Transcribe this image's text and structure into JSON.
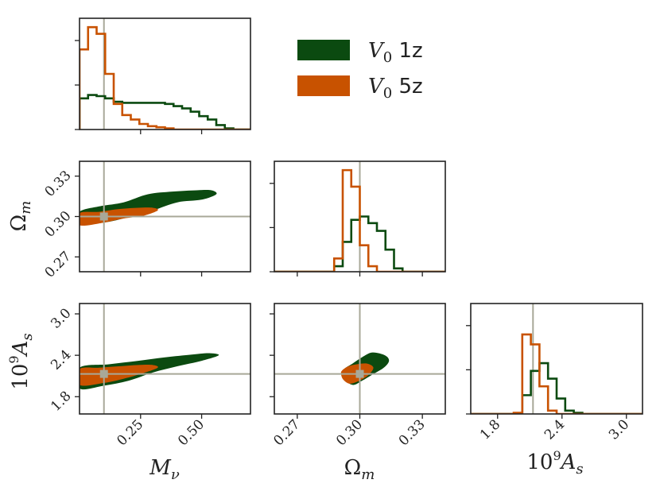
{
  "chart_data": {
    "type": "corner",
    "parameters": [
      {
        "key": "Mnu",
        "label": "Mν",
        "ticks": [
          "0.25",
          "0.50"
        ],
        "tick_values": [
          0.25,
          0.5
        ],
        "range": [
          0.0,
          0.7
        ],
        "truth": 0.1
      },
      {
        "key": "Om",
        "label": "Ωm",
        "ticks": [
          "0.27",
          "0.30",
          "0.33"
        ],
        "tick_values": [
          0.27,
          0.3,
          0.33
        ],
        "range": [
          0.259,
          0.341
        ],
        "truth": 0.3
      },
      {
        "key": "As",
        "label": "10⁹As",
        "ticks": [
          "1.8",
          "2.4",
          "3.0"
        ],
        "tick_values": [
          1.8,
          2.4,
          3.0
        ],
        "range": [
          1.55,
          3.15
        ],
        "truth": 2.13
      }
    ],
    "legend": [
      {
        "name": "V0 1z",
        "color": "#0b4a10"
      },
      {
        "name": "V0 5z",
        "color": "#c85200"
      }
    ],
    "truth_color": "#a8a898",
    "histograms": {
      "Mnu": {
        "bin_edges": [
          0.0,
          0.035,
          0.07,
          0.105,
          0.14,
          0.175,
          0.21,
          0.245,
          0.28,
          0.315,
          0.35,
          0.385,
          0.42,
          0.455,
          0.49,
          0.525,
          0.56,
          0.595,
          0.63,
          0.665,
          0.7
        ],
        "series": [
          {
            "name": "V0 1z",
            "values": [
              0.28,
              0.31,
              0.3,
              0.28,
              0.25,
              0.24,
              0.24,
              0.24,
              0.24,
              0.24,
              0.23,
              0.21,
              0.19,
              0.16,
              0.12,
              0.09,
              0.04,
              0.01,
              0.0,
              0.0
            ]
          },
          {
            "name": "V0 5z",
            "values": [
              0.72,
              0.92,
              0.86,
              0.5,
              0.23,
              0.13,
              0.09,
              0.05,
              0.03,
              0.02,
              0.01,
              0.0,
              0.0,
              0.0,
              0.0,
              0.0,
              0.0,
              0.0,
              0.0,
              0.0
            ]
          }
        ]
      },
      "Om": {
        "bin_edges": [
          0.259,
          0.2631,
          0.2672,
          0.2713,
          0.2754,
          0.2795,
          0.2836,
          0.2877,
          0.2918,
          0.2959,
          0.3,
          0.3041,
          0.3082,
          0.3123,
          0.3164,
          0.3205,
          0.3246,
          0.3287,
          0.3328,
          0.3369,
          0.341
        ],
        "series": [
          {
            "name": "V0 1z",
            "values": [
              0.0,
              0.0,
              0.0,
              0.0,
              0.0,
              0.0,
              0.0,
              0.05,
              0.27,
              0.47,
              0.5,
              0.44,
              0.37,
              0.2,
              0.03,
              0.0,
              0.0,
              0.0,
              0.0,
              0.0
            ]
          },
          {
            "name": "V0 5z",
            "values": [
              0.0,
              0.0,
              0.0,
              0.0,
              0.0,
              0.0,
              0.0,
              0.12,
              0.92,
              0.77,
              0.24,
              0.05,
              0.0,
              0.0,
              0.0,
              0.0,
              0.0,
              0.0,
              0.0,
              0.0
            ]
          }
        ]
      },
      "As": {
        "bin_edges": [
          1.55,
          1.63,
          1.71,
          1.79,
          1.87,
          1.95,
          2.03,
          2.11,
          2.19,
          2.27,
          2.35,
          2.43,
          2.51,
          2.59,
          2.67,
          2.75,
          2.83,
          2.91,
          2.99,
          3.07,
          3.15
        ],
        "series": [
          {
            "name": "V0 1z",
            "values": [
              0.0,
              0.0,
              0.0,
              0.0,
              0.0,
              0.0,
              0.17,
              0.39,
              0.46,
              0.32,
              0.14,
              0.03,
              0.01,
              0.0,
              0.0,
              0.0,
              0.0,
              0.0,
              0.0,
              0.0
            ]
          },
          {
            "name": "V0 5z",
            "values": [
              0.0,
              0.0,
              0.0,
              0.0,
              0.0,
              0.01,
              0.72,
              0.63,
              0.25,
              0.03,
              0.0,
              0.0,
              0.0,
              0.0,
              0.0,
              0.0,
              0.0,
              0.0,
              0.0,
              0.0
            ]
          }
        ]
      }
    },
    "contours": {
      "Mnu_Om": [
        {
          "name": "V0 1z",
          "points": [
            [
              0.0,
              0.3035
            ],
            [
              0.08,
              0.3075
            ],
            [
              0.18,
              0.3105
            ],
            [
              0.28,
              0.3165
            ],
            [
              0.38,
              0.3185
            ],
            [
              0.48,
              0.3195
            ],
            [
              0.54,
              0.3195
            ],
            [
              0.56,
              0.3165
            ],
            [
              0.5,
              0.3125
            ],
            [
              0.4,
              0.3105
            ],
            [
              0.3,
              0.3045
            ],
            [
              0.2,
              0.2995
            ],
            [
              0.1,
              0.2955
            ],
            [
              0.0,
              0.2945
            ]
          ]
        },
        {
          "name": "V0 5z",
          "points": [
            [
              0.0,
              0.3025
            ],
            [
              0.08,
              0.3035
            ],
            [
              0.16,
              0.3055
            ],
            [
              0.24,
              0.3065
            ],
            [
              0.3,
              0.3065
            ],
            [
              0.32,
              0.3045
            ],
            [
              0.26,
              0.3005
            ],
            [
              0.18,
              0.2985
            ],
            [
              0.1,
              0.2955
            ],
            [
              0.0,
              0.2935
            ]
          ]
        }
      ],
      "Mnu_As": [
        {
          "name": "V0 1z",
          "points": [
            [
              0.0,
              2.22
            ],
            [
              0.12,
              2.27
            ],
            [
              0.24,
              2.32
            ],
            [
              0.35,
              2.37
            ],
            [
              0.46,
              2.41
            ],
            [
              0.53,
              2.43
            ],
            [
              0.57,
              2.4
            ],
            [
              0.5,
              2.32
            ],
            [
              0.4,
              2.24
            ],
            [
              0.3,
              2.15
            ],
            [
              0.2,
              2.03
            ],
            [
              0.1,
              1.96
            ],
            [
              0.0,
              1.92
            ]
          ]
        },
        {
          "name": "V0 5z",
          "points": [
            [
              0.0,
              2.2
            ],
            [
              0.08,
              2.22
            ],
            [
              0.16,
              2.24
            ],
            [
              0.24,
              2.26
            ],
            [
              0.3,
              2.26
            ],
            [
              0.32,
              2.22
            ],
            [
              0.26,
              2.14
            ],
            [
              0.18,
              2.06
            ],
            [
              0.1,
              2.0
            ],
            [
              0.0,
              1.97
            ]
          ]
        }
      ],
      "Om_As": [
        {
          "name": "V0 1z",
          "points": [
            [
              0.2925,
              2.2
            ],
            [
              0.2965,
              2.28
            ],
            [
              0.301,
              2.37
            ],
            [
              0.306,
              2.44
            ],
            [
              0.312,
              2.4
            ],
            [
              0.314,
              2.32
            ],
            [
              0.3115,
              2.22
            ],
            [
              0.306,
              2.12
            ],
            [
              0.301,
              2.03
            ],
            [
              0.297,
              1.97
            ],
            [
              0.2935,
              2.02
            ],
            [
              0.2915,
              2.1
            ]
          ]
        },
        {
          "name": "V0 5z",
          "points": [
            [
              0.2915,
              2.18
            ],
            [
              0.2945,
              2.24
            ],
            [
              0.2985,
              2.27
            ],
            [
              0.3035,
              2.28
            ],
            [
              0.3065,
              2.22
            ],
            [
              0.304,
              2.11
            ],
            [
              0.299,
              2.02
            ],
            [
              0.295,
              1.99
            ],
            [
              0.292,
              2.05
            ],
            [
              0.291,
              2.13
            ]
          ]
        }
      ]
    }
  }
}
